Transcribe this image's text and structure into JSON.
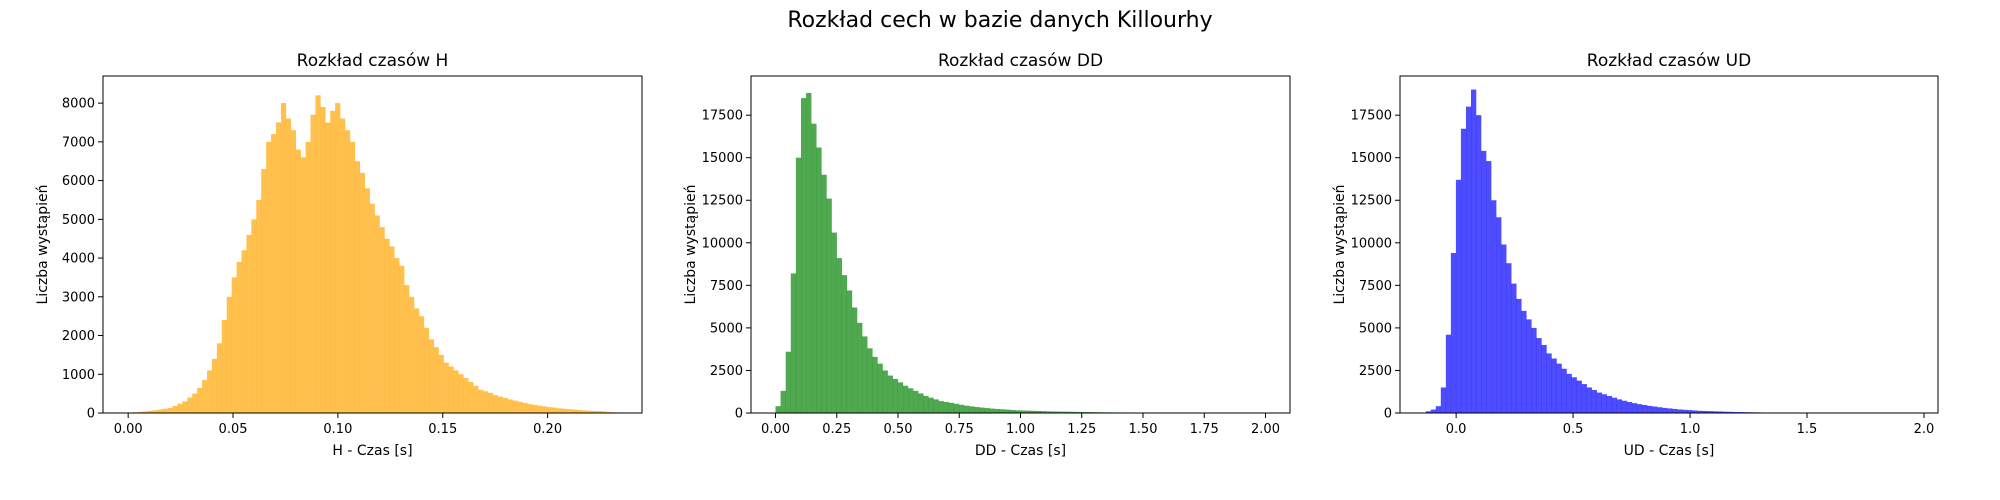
{
  "figure": {
    "title": "Rozkład cech w bazie danych Killourhy"
  },
  "chart_data": [
    {
      "type": "bar",
      "title": "Rozkład czasów H",
      "xlabel": "H - Czas [s]",
      "ylabel": "Liczba wystąpień",
      "color": "#FFB020",
      "opacity": 0.8,
      "xlim": [
        -0.012,
        0.245
      ],
      "ylim": [
        0,
        8700
      ],
      "xticks": [
        0.0,
        0.05,
        0.1,
        0.15,
        0.2
      ],
      "xtick_labels": [
        "0.00",
        "0.05",
        "0.10",
        "0.15",
        "0.20"
      ],
      "yticks": [
        0,
        1000,
        2000,
        3000,
        4000,
        5000,
        6000,
        7000,
        8000
      ],
      "ytick_labels": [
        "0",
        "1000",
        "2000",
        "3000",
        "4000",
        "5000",
        "6000",
        "7000",
        "8000"
      ],
      "bin_start": 0.0,
      "bin_width": 0.00235,
      "values": [
        10,
        20,
        30,
        40,
        55,
        70,
        90,
        110,
        130,
        180,
        240,
        300,
        400,
        500,
        650,
        850,
        1100,
        1400,
        1800,
        2400,
        3000,
        3500,
        3900,
        4200,
        4600,
        5000,
        5500,
        6300,
        7000,
        7200,
        7500,
        8000,
        7600,
        7300,
        6800,
        6600,
        7000,
        7700,
        8200,
        7900,
        7500,
        7800,
        8000,
        7600,
        7300,
        7000,
        6500,
        6200,
        5800,
        5400,
        5100,
        4800,
        4500,
        4300,
        4000,
        3800,
        3300,
        3000,
        2700,
        2500,
        2200,
        1900,
        1700,
        1500,
        1300,
        1200,
        1100,
        1000,
        900,
        800,
        700,
        600,
        560,
        520,
        460,
        420,
        390,
        350,
        320,
        290,
        260,
        230,
        210,
        190,
        170,
        150,
        140,
        120,
        110,
        100,
        90,
        80,
        70,
        60,
        55,
        50,
        40,
        30,
        20,
        10
      ]
    },
    {
      "type": "bar",
      "title": "Rozkład czasów DD",
      "xlabel": "DD - Czas [s]",
      "ylabel": "Liczba wystąpień",
      "color": "#168C16",
      "opacity": 0.75,
      "xlim": [
        -0.1,
        2.1
      ],
      "ylim": [
        0,
        19800
      ],
      "xticks": [
        0.0,
        0.25,
        0.5,
        0.75,
        1.0,
        1.25,
        1.5,
        1.75,
        2.0
      ],
      "xtick_labels": [
        "0.00",
        "0.25",
        "0.50",
        "0.75",
        "1.00",
        "1.25",
        "1.50",
        "1.75",
        "2.00"
      ],
      "yticks": [
        0,
        2500,
        5000,
        7500,
        10000,
        12500,
        15000,
        17500
      ],
      "ytick_labels": [
        "0",
        "2500",
        "5000",
        "7500",
        "10000",
        "12500",
        "15000",
        "17500"
      ],
      "bin_start": 0.0,
      "bin_width": 0.0208,
      "values": [
        400,
        1300,
        3600,
        8200,
        15000,
        18500,
        18800,
        17000,
        15600,
        14000,
        12600,
        10600,
        9100,
        8100,
        7200,
        6200,
        5300,
        4500,
        3800,
        3300,
        2900,
        2500,
        2200,
        2000,
        1800,
        1600,
        1450,
        1300,
        1150,
        1000,
        900,
        800,
        700,
        650,
        600,
        540,
        480,
        430,
        390,
        350,
        320,
        290,
        260,
        240,
        220,
        200,
        180,
        160,
        150,
        140,
        130,
        120,
        110,
        100,
        90,
        85,
        80,
        75,
        70,
        65,
        60,
        55,
        50,
        45,
        40,
        38,
        35,
        32,
        30,
        28,
        26,
        24,
        22,
        20,
        18,
        16,
        15,
        14,
        13,
        12,
        11,
        10,
        9,
        8,
        7,
        6,
        6,
        5,
        5,
        4,
        4,
        3,
        3,
        3,
        2,
        2,
        2,
        2,
        1,
        1
      ]
    },
    {
      "type": "bar",
      "title": "Rozkład czasów UD",
      "xlabel": "UD - Czas [s]",
      "ylabel": "Liczba wystąpień",
      "color": "#1212FF",
      "opacity": 0.75,
      "xlim": [
        -0.24,
        2.06
      ],
      "ylim": [
        0,
        19800
      ],
      "xticks": [
        0.0,
        0.5,
        1.0,
        1.5,
        2.0
      ],
      "xtick_labels": [
        "0.0",
        "0.5",
        "1.0",
        "1.5",
        "2.0"
      ],
      "yticks": [
        0,
        2500,
        5000,
        7500,
        10000,
        12500,
        15000,
        17500
      ],
      "ytick_labels": [
        "0",
        "2500",
        "5000",
        "7500",
        "10000",
        "12500",
        "15000",
        "17500"
      ],
      "bin_start": -0.13,
      "bin_width": 0.0215,
      "values": [
        100,
        200,
        400,
        1500,
        4600,
        9400,
        13700,
        16700,
        18000,
        19000,
        17500,
        15400,
        14800,
        12500,
        11500,
        9900,
        8800,
        7600,
        6700,
        6000,
        5500,
        5000,
        4400,
        4000,
        3500,
        3200,
        2900,
        2600,
        2300,
        2100,
        1900,
        1700,
        1500,
        1350,
        1200,
        1100,
        1000,
        900,
        800,
        720,
        650,
        580,
        520,
        470,
        420,
        380,
        340,
        300,
        270,
        240,
        210,
        190,
        170,
        150,
        130,
        120,
        110,
        100,
        90,
        80,
        70,
        60,
        55,
        50,
        45,
        40,
        35,
        30,
        28,
        25,
        22,
        20,
        18,
        16,
        14,
        12,
        10,
        9,
        8,
        7,
        6,
        5,
        4,
        3,
        3,
        2,
        2,
        1
      ]
    }
  ]
}
